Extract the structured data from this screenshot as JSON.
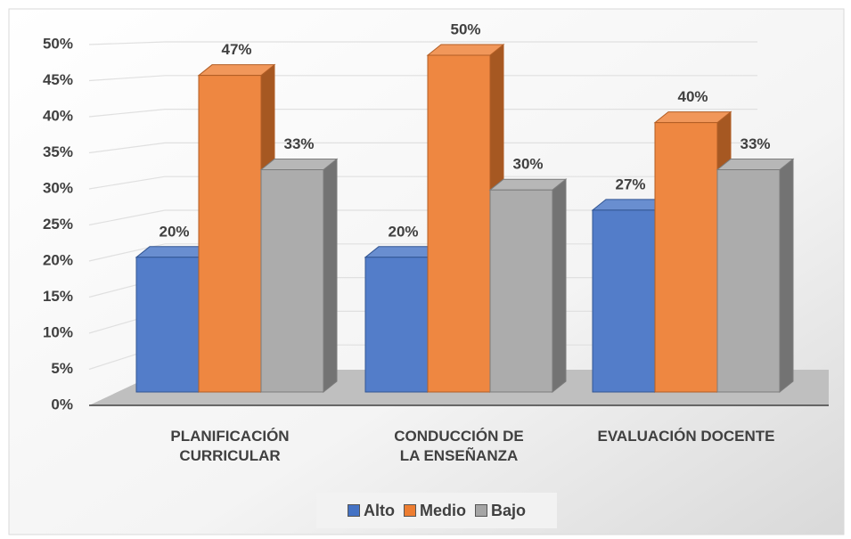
{
  "chart_data": {
    "type": "bar3d",
    "categories": [
      "PLANIFICACIÓN CURRICULAR",
      "CONDUCCIÓN DE LA ENSEÑANZA",
      "EVALUACIÓN DOCENTE"
    ],
    "series": [
      {
        "name": "Alto",
        "color": "#4472c4",
        "values": [
          20,
          20,
          27
        ],
        "value_labels": [
          "20%",
          "20%",
          "27%"
        ]
      },
      {
        "name": "Medio",
        "color": "#ed7d31",
        "values": [
          47,
          50,
          40
        ],
        "value_labels": [
          "47%",
          "50%",
          "40%"
        ]
      },
      {
        "name": "Bajo",
        "color": "#a5a5a5",
        "values": [
          33,
          30,
          33
        ],
        "value_labels": [
          "33%",
          "30%",
          "33%"
        ]
      }
    ],
    "ylim": [
      0,
      50
    ],
    "yticks": [
      {
        "value": 0,
        "label": "0%"
      },
      {
        "value": 5,
        "label": "5%"
      },
      {
        "value": 10,
        "label": "10%"
      },
      {
        "value": 15,
        "label": "15%"
      },
      {
        "value": 20,
        "label": "20%"
      },
      {
        "value": 25,
        "label": "25%"
      },
      {
        "value": 30,
        "label": "30%"
      },
      {
        "value": 35,
        "label": "35%"
      },
      {
        "value": 40,
        "label": "40%"
      },
      {
        "value": 45,
        "label": "45%"
      },
      {
        "value": 50,
        "label": "50%"
      }
    ],
    "grid": true,
    "legend": "bottom"
  }
}
